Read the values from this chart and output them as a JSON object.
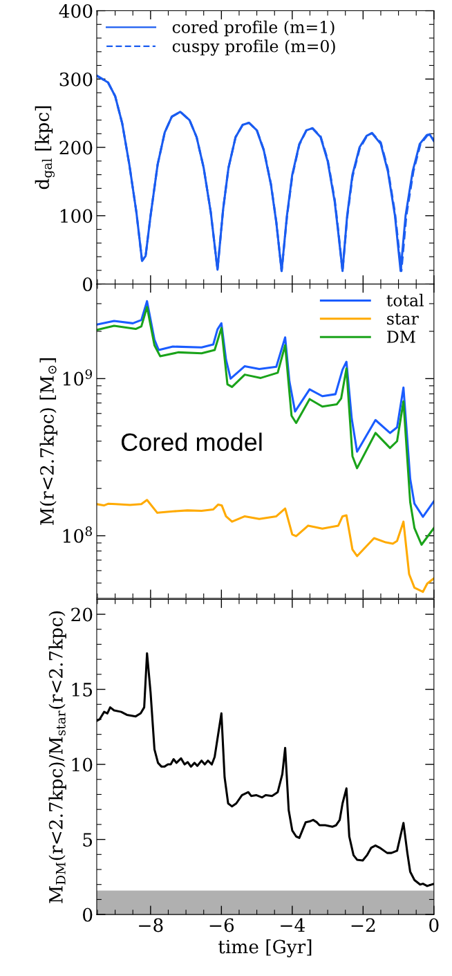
{
  "chart_data": [
    {
      "type": "line",
      "ylabel": "d$_{gal}$ [kpc]",
      "xlim": [
        -9.52,
        0
      ],
      "ylim": [
        0,
        400
      ],
      "tick_labels": "y",
      "legend": "top left",
      "grid": false,
      "xticks": [
        {
          "value": -9.5,
          "label": null
        },
        {
          "value": -9,
          "label": null
        },
        {
          "value": -8.5,
          "label": null
        },
        -8,
        {
          "value": -7.5,
          "label": null
        },
        {
          "value": -7,
          "label": null
        },
        {
          "value": -6.5,
          "label": null
        },
        -6,
        {
          "value": -5.5,
          "label": null
        },
        {
          "value": -5,
          "label": null
        },
        {
          "value": -4.5,
          "label": null
        },
        -4,
        {
          "value": -3.5,
          "label": null
        },
        {
          "value": -3,
          "label": null
        },
        {
          "value": -2.5,
          "label": null
        },
        -2,
        {
          "value": -1.5,
          "label": null
        },
        {
          "value": -1,
          "label": null
        },
        {
          "value": -0.5,
          "label": null
        },
        0
      ],
      "yticks": [
        0,
        {
          "value": 20,
          "label": null
        },
        {
          "value": 40,
          "label": null
        },
        {
          "value": 60,
          "label": null
        },
        {
          "value": 80,
          "label": null
        },
        100,
        {
          "value": 120,
          "label": null
        },
        {
          "value": 140,
          "label": null
        },
        {
          "value": 160,
          "label": null
        },
        {
          "value": 180,
          "label": null
        },
        200,
        {
          "value": 220,
          "label": null
        },
        {
          "value": 240,
          "label": null
        },
        {
          "value": 260,
          "label": null
        },
        {
          "value": 280,
          "label": null
        },
        300,
        {
          "value": 320,
          "label": null
        },
        {
          "value": 340,
          "label": null
        },
        {
          "value": 360,
          "label": null
        },
        {
          "value": 380,
          "label": null
        },
        400
      ],
      "series": [
        {
          "name": "cored profile (m=1)",
          "color": "#1a5cf0",
          "line_style": "solid",
          "x": [
            -9.52,
            -9.2,
            -9.0,
            -8.8,
            -8.6,
            -8.4,
            -8.24,
            -8.14,
            -8.0,
            -7.8,
            -7.6,
            -7.4,
            -7.16,
            -6.9,
            -6.7,
            -6.5,
            -6.3,
            -6.11,
            -5.95,
            -5.8,
            -5.6,
            -5.4,
            -5.22,
            -5.0,
            -4.8,
            -4.6,
            -4.45,
            -4.3,
            -4.15,
            -4.0,
            -3.8,
            -3.6,
            -3.43,
            -3.2,
            -3.0,
            -2.8,
            -2.7,
            -2.58,
            -2.45,
            -2.3,
            -2.1,
            -1.9,
            -1.75,
            -1.5,
            -1.3,
            -1.1,
            -0.94,
            -0.8,
            -0.6,
            -0.4,
            -0.2,
            -0.12,
            0
          ],
          "values": [
            305,
            295,
            275,
            235,
            175,
            105,
            34,
            41,
            100,
            175,
            222,
            245,
            252,
            240,
            215,
            170,
            105,
            21,
            110,
            170,
            215,
            233,
            236,
            225,
            195,
            145,
            90,
            19,
            100,
            160,
            205,
            225,
            228,
            215,
            180,
            120,
            75,
            19,
            100,
            160,
            200,
            217,
            221,
            205,
            165,
            100,
            19,
            100,
            165,
            205,
            218,
            219,
            209
          ]
        },
        {
          "name": "cuspy profile (m=0)",
          "color": "#1a5cf0",
          "line_style": "dashed",
          "x": [
            -9.52,
            -9.2,
            -9.0,
            -8.8,
            -8.6,
            -8.4,
            -8.24,
            -8.14,
            -8.0,
            -7.8,
            -7.6,
            -7.4,
            -7.16,
            -6.9,
            -6.7,
            -6.5,
            -6.3,
            -6.11,
            -5.95,
            -5.8,
            -5.6,
            -5.4,
            -5.22,
            -5.0,
            -4.8,
            -4.6,
            -4.45,
            -4.3,
            -4.15,
            -4.0,
            -3.8,
            -3.6,
            -3.43,
            -3.2,
            -3.0,
            -2.8,
            -2.7,
            -2.58,
            -2.45,
            -2.3,
            -2.1,
            -1.9,
            -1.75,
            -1.5,
            -1.3,
            -1.1,
            -0.92,
            -0.78,
            -0.58,
            -0.38,
            -0.18,
            -0.1,
            0
          ],
          "values": [
            305,
            295,
            275,
            235,
            175,
            105,
            34,
            41,
            100,
            175,
            222,
            245,
            252,
            240,
            215,
            170,
            105,
            21,
            110,
            170,
            215,
            233,
            236,
            225,
            196,
            146,
            91,
            19,
            98,
            158,
            204,
            225,
            228,
            216,
            182,
            123,
            78,
            19,
            97,
            157,
            198,
            216,
            221,
            207,
            168,
            104,
            19,
            100,
            165,
            205,
            218,
            218,
            210
          ]
        }
      ]
    },
    {
      "type": "line",
      "ylabel": "M(r<2.7kpc) [M$_{⊙}$]",
      "log": "y",
      "xlim": [
        -9.52,
        0
      ],
      "ylim": [
        40000000.0,
        4000000000.0
      ],
      "tick_labels": "y",
      "legend": "top right",
      "grid": false,
      "annotations": [
        "Cored model"
      ],
      "xticks": [
        {
          "value": -9.5,
          "label": null
        },
        {
          "value": -9,
          "label": null
        },
        {
          "value": -8.5,
          "label": null
        },
        -8,
        {
          "value": -7.5,
          "label": null
        },
        {
          "value": -7,
          "label": null
        },
        {
          "value": -6.5,
          "label": null
        },
        -6,
        {
          "value": -5.5,
          "label": null
        },
        {
          "value": -5,
          "label": null
        },
        {
          "value": -4.5,
          "label": null
        },
        -4,
        {
          "value": -3.5,
          "label": null
        },
        {
          "value": -3,
          "label": null
        },
        {
          "value": -2.5,
          "label": null
        },
        -2,
        {
          "value": -1.5,
          "label": null
        },
        {
          "value": -1,
          "label": null
        },
        {
          "value": -0.5,
          "label": null
        },
        0
      ],
      "yticks": [
        {
          "value": 50000000.0,
          "label": null
        },
        {
          "value": 60000000.0,
          "label": null
        },
        {
          "value": 70000000.0,
          "label": null
        },
        {
          "value": 80000000.0,
          "label": null
        },
        {
          "value": 90000000.0,
          "label": null
        },
        {
          "value": 100000000.0,
          "label": "10$^{8}$"
        },
        {
          "value": 200000000.0,
          "label": null
        },
        {
          "value": 300000000.0,
          "label": null
        },
        {
          "value": 400000000.0,
          "label": null
        },
        {
          "value": 500000000.0,
          "label": null
        },
        {
          "value": 600000000.0,
          "label": null
        },
        {
          "value": 700000000.0,
          "label": null
        },
        {
          "value": 800000000.0,
          "label": null
        },
        {
          "value": 900000000.0,
          "label": null
        },
        {
          "value": 1000000000.0,
          "label": "10$^{9}$"
        },
        {
          "value": 2000000000.0,
          "label": null
        },
        {
          "value": 3000000000.0,
          "label": null
        },
        {
          "value": 4000000000.0,
          "label": null
        }
      ],
      "series": [
        {
          "name": "total",
          "color": "#1a5cff",
          "x": [
            -9.52,
            -9.03,
            -8.5,
            -8.26,
            -8.1,
            -7.89,
            -7.77,
            -7.37,
            -6.56,
            -6.23,
            -6.11,
            -6.0,
            -5.87,
            -5.74,
            -5.34,
            -4.93,
            -4.45,
            -4.2,
            -4.08,
            -3.92,
            -3.51,
            -3.15,
            -2.78,
            -2.58,
            -2.47,
            -2.32,
            -2.17,
            -1.65,
            -1.24,
            -1.04,
            -0.86,
            -0.67,
            -0.55,
            -0.31,
            0
          ],
          "values": [
            2210000000.0,
            2330000000.0,
            2250000000.0,
            2360000000.0,
            3110000000.0,
            1770000000.0,
            1520000000.0,
            1600000000.0,
            1580000000.0,
            1650000000.0,
            2060000000.0,
            2250000000.0,
            1320000000.0,
            1000000000.0,
            1200000000.0,
            1150000000.0,
            1190000000.0,
            1830000000.0,
            960000000.0,
            618000000.0,
            855000000.0,
            773000000.0,
            796000000.0,
            1140000000.0,
            1280000000.0,
            556000000.0,
            343000000.0,
            545000000.0,
            451000000.0,
            490000000.0,
            877000000.0,
            230000000.0,
            160000000.0,
            132000000.0,
            166000000.0
          ]
        },
        {
          "name": "star",
          "color": "#ffaa00",
          "x": [
            -9.52,
            -9.31,
            -9.19,
            -8.99,
            -8.58,
            -8.26,
            -8.1,
            -7.81,
            -7.37,
            -6.96,
            -6.56,
            -6.23,
            -6.09,
            -5.99,
            -5.87,
            -5.7,
            -5.34,
            -4.93,
            -4.45,
            -4.2,
            -4.0,
            -3.89,
            -3.55,
            -3.15,
            -2.7,
            -2.58,
            -2.47,
            -2.3,
            -2.17,
            -1.69,
            -1.36,
            -1.16,
            -1.04,
            -0.86,
            -0.7,
            -0.55,
            -0.31,
            -0.19,
            0
          ],
          "values": [
            159000000.0,
            156000000.0,
            160000000.0,
            159000000.0,
            157000000.0,
            159000000.0,
            169000000.0,
            140000000.0,
            143000000.0,
            145000000.0,
            144000000.0,
            147000000.0,
            158000000.0,
            156000000.0,
            133000000.0,
            123000000.0,
            133000000.0,
            128000000.0,
            133000000.0,
            149000000.0,
            102000000.0,
            99500000.0,
            116000000.0,
            111000000.0,
            116000000.0,
            133000000.0,
            135000000.0,
            81700000.0,
            74200000.0,
            96600000.0,
            90800000.0,
            89000000.0,
            92700000.0,
            123000000.0,
            57000000.0,
            46700000.0,
            44000000.0,
            49600000.0,
            53600000.0
          ]
        },
        {
          "name": "DM",
          "color": "#1aa31a",
          "x": [
            -9.52,
            -9.03,
            -8.42,
            -8.26,
            -8.1,
            -7.89,
            -7.73,
            -7.21,
            -6.56,
            -6.19,
            -6.0,
            -5.83,
            -5.7,
            -5.34,
            -4.89,
            -4.41,
            -4.2,
            -4.02,
            -3.89,
            -3.51,
            -3.15,
            -2.74,
            -2.62,
            -2.47,
            -2.3,
            -2.17,
            -1.65,
            -1.24,
            -1.04,
            -0.86,
            -0.67,
            -0.55,
            -0.35,
            0
          ],
          "values": [
            2040000000.0,
            2170000000.0,
            2070000000.0,
            2150000000.0,
            2860000000.0,
            1630000000.0,
            1390000000.0,
            1470000000.0,
            1450000000.0,
            1520000000.0,
            2100000000.0,
            920000000.0,
            885000000.0,
            1060000000.0,
            1010000000.0,
            1090000000.0,
            1630000000.0,
            581000000.0,
            522000000.0,
            741000000.0,
            664000000.0,
            687000000.0,
            747000000.0,
            1160000000.0,
            321000000.0,
            269000000.0,
            451000000.0,
            362000000.0,
            400000000.0,
            716000000.0,
            164000000.0,
            112000000.0,
            87700000.0,
            112000000.0
          ]
        }
      ]
    },
    {
      "type": "line",
      "ylabel": "M$_{DM}$(r<2.7kpc)/M$_{star}$(r<2.7kpc)",
      "xlabel": "time [Gyr]",
      "xlim": [
        -9.52,
        0
      ],
      "ylim": [
        0,
        21
      ],
      "grid": false,
      "bands": [
        {
          "axis": "y",
          "from": 0,
          "to": 1.6,
          "color": "#b0b0b0"
        }
      ],
      "xticks": [
        {
          "value": -9.5,
          "label": null
        },
        {
          "value": -9,
          "label": null
        },
        {
          "value": -8.5,
          "label": null
        },
        {
          "value": -8,
          "label": "−8"
        },
        {
          "value": -7.5,
          "label": null
        },
        {
          "value": -7,
          "label": null
        },
        {
          "value": -6.5,
          "label": null
        },
        {
          "value": -6,
          "label": "−6"
        },
        {
          "value": -5.5,
          "label": null
        },
        {
          "value": -5,
          "label": null
        },
        {
          "value": -4.5,
          "label": null
        },
        {
          "value": -4,
          "label": "−4"
        },
        {
          "value": -3.5,
          "label": null
        },
        {
          "value": -3,
          "label": null
        },
        {
          "value": -2.5,
          "label": null
        },
        {
          "value": -2,
          "label": "−2"
        },
        {
          "value": -1.5,
          "label": null
        },
        {
          "value": -1,
          "label": null
        },
        {
          "value": -0.5,
          "label": null
        },
        {
          "value": 0,
          "label": "0"
        }
      ],
      "yticks": [
        0,
        {
          "value": 1,
          "label": null
        },
        {
          "value": 2,
          "label": null
        },
        {
          "value": 3,
          "label": null
        },
        {
          "value": 4,
          "label": null
        },
        5,
        {
          "value": 6,
          "label": null
        },
        {
          "value": 7,
          "label": null
        },
        {
          "value": 8,
          "label": null
        },
        {
          "value": 9,
          "label": null
        },
        10,
        {
          "value": 11,
          "label": null
        },
        {
          "value": 12,
          "label": null
        },
        {
          "value": 13,
          "label": null
        },
        {
          "value": 14,
          "label": null
        },
        15,
        {
          "value": 16,
          "label": null
        },
        {
          "value": 17,
          "label": null
        },
        {
          "value": 18,
          "label": null
        },
        {
          "value": 19,
          "label": null
        },
        20
      ],
      "series": [
        {
          "color": "#000000",
          "x": [
            -9.52,
            -9.44,
            -9.31,
            -9.22,
            -9.14,
            -9.03,
            -8.83,
            -8.67,
            -8.42,
            -8.28,
            -8.18,
            -8.1,
            -8.0,
            -7.89,
            -7.79,
            -7.69,
            -7.61,
            -7.51,
            -7.43,
            -7.35,
            -7.27,
            -7.14,
            -7.04,
            -6.95,
            -6.86,
            -6.76,
            -6.68,
            -6.56,
            -6.47,
            -6.38,
            -6.27,
            -6.19,
            -6.0,
            -5.91,
            -5.81,
            -5.7,
            -5.58,
            -5.42,
            -5.24,
            -5.16,
            -5.01,
            -4.85,
            -4.75,
            -4.57,
            -4.41,
            -4.28,
            -4.2,
            -4.1,
            -4.0,
            -3.89,
            -3.8,
            -3.62,
            -3.51,
            -3.41,
            -3.31,
            -3.23,
            -3.07,
            -2.86,
            -2.76,
            -2.66,
            -2.58,
            -2.47,
            -2.39,
            -2.27,
            -2.17,
            -2.01,
            -1.89,
            -1.77,
            -1.65,
            -1.53,
            -1.32,
            -1.2,
            -1.04,
            -0.86,
            -0.75,
            -0.67,
            -0.55,
            -0.39,
            -0.31,
            -0.19,
            0
          ],
          "values": [
            12.9,
            13.0,
            13.5,
            13.4,
            13.8,
            13.6,
            13.5,
            13.3,
            13.2,
            13.4,
            13.8,
            17.4,
            14.8,
            11.0,
            10.1,
            9.85,
            9.85,
            10.0,
            10.0,
            10.35,
            10.1,
            10.4,
            10.0,
            10.15,
            9.85,
            10.1,
            9.9,
            10.25,
            10.0,
            10.25,
            10.0,
            10.5,
            13.4,
            9.15,
            7.4,
            7.2,
            7.4,
            7.95,
            8.15,
            7.9,
            7.95,
            7.8,
            7.95,
            7.9,
            8.15,
            9.35,
            11.1,
            6.95,
            5.6,
            5.2,
            5.1,
            6.15,
            6.2,
            6.3,
            6.15,
            5.95,
            5.95,
            5.85,
            5.95,
            6.3,
            7.4,
            8.4,
            5.2,
            3.95,
            3.65,
            3.6,
            3.95,
            4.45,
            4.6,
            4.45,
            4.1,
            4.1,
            4.25,
            6.1,
            4.1,
            2.85,
            2.3,
            2.0,
            2.05,
            1.9,
            2.05
          ]
        }
      ]
    }
  ]
}
